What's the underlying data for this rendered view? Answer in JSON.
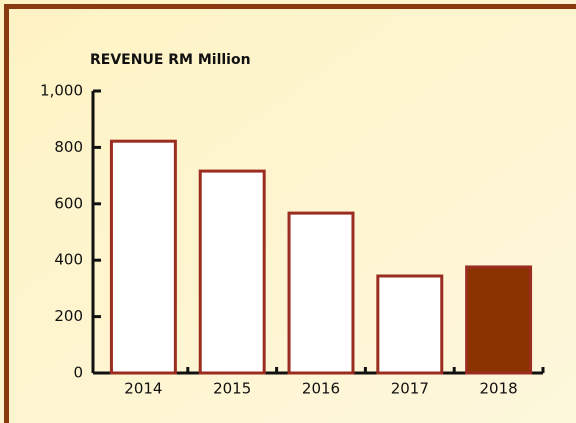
{
  "chart_data": {
    "type": "bar",
    "title": "REVENUE RM Million",
    "categories": [
      "2014",
      "2015",
      "2016",
      "2017",
      "2018"
    ],
    "values": [
      822,
      716,
      567,
      344,
      376
    ],
    "colors": [
      "#ffffff",
      "#ffffff",
      "#ffffff",
      "#ffffff",
      "#8b3300"
    ],
    "edge_color": "#9b2d20",
    "ylim": [
      0,
      1000
    ],
    "yticks": [
      0,
      200,
      400,
      600,
      800,
      {
        "value": 1000,
        "label": "1,000"
      }
    ],
    "grid": false
  }
}
